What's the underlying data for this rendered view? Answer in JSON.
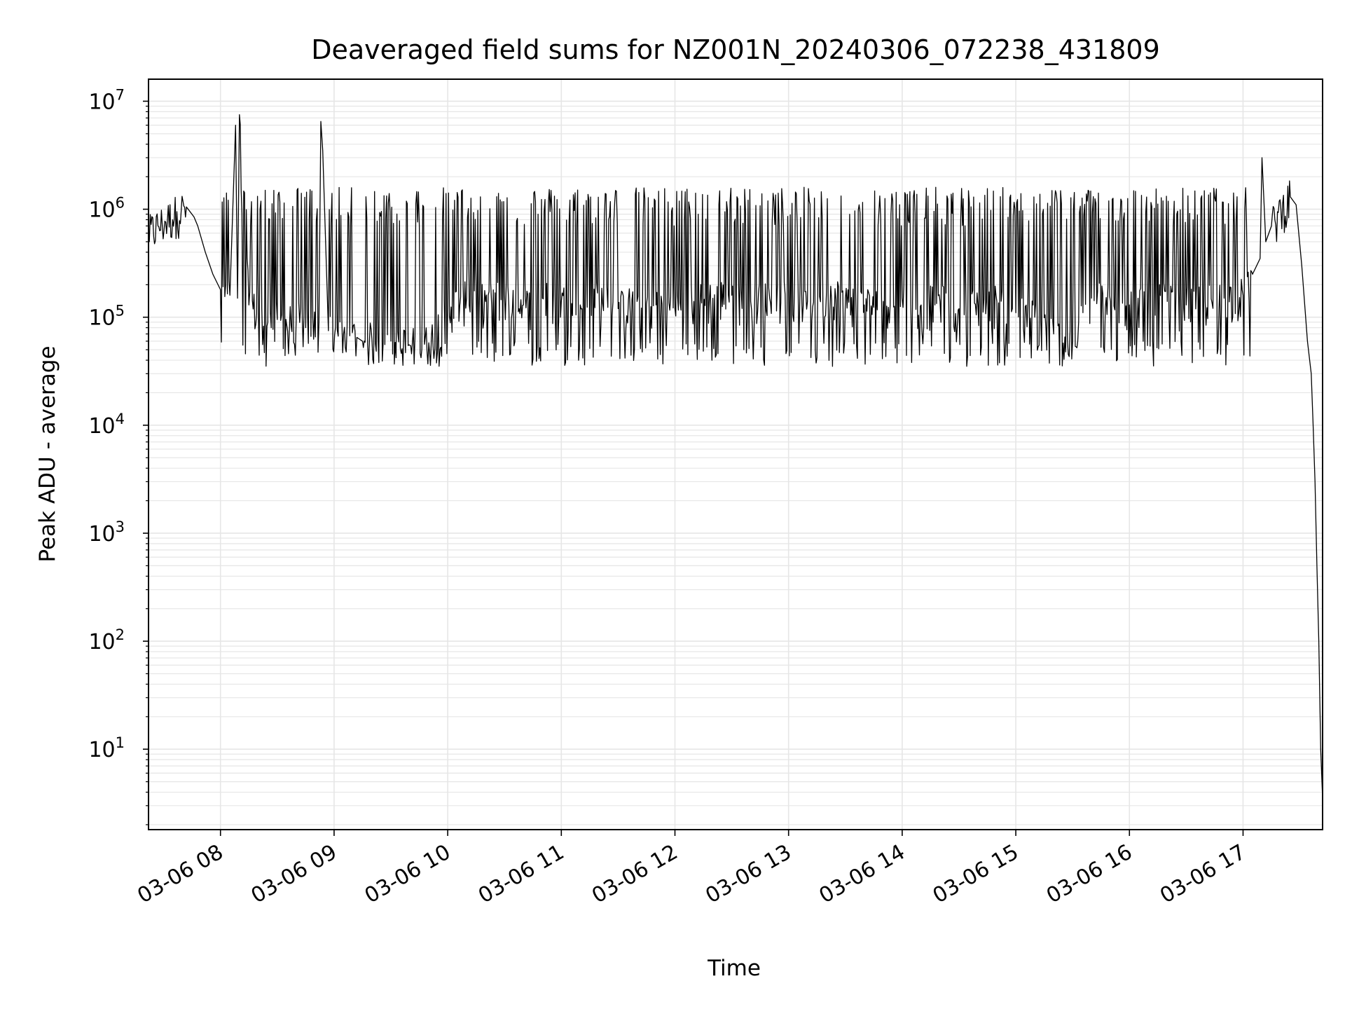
{
  "chart_data": {
    "type": "line",
    "title": "Deaveraged field sums for NZ001N_20240306_072238_431809",
    "xlabel": "Time",
    "ylabel": "Peak ADU - average",
    "yscale": "log",
    "grid": true,
    "legend": "none",
    "line_color": "#000000",
    "grid_color": "#e6e6e6",
    "xlim": [
      "2024-03-06 07:22",
      "2024-03-06 17:42"
    ],
    "ylim": [
      1.8,
      16000000
    ],
    "x_ticks": [
      {
        "value": "2024-03-06 08:00",
        "label": "03-06 08"
      },
      {
        "value": "2024-03-06 09:00",
        "label": "03-06 09"
      },
      {
        "value": "2024-03-06 10:00",
        "label": "03-06 10"
      },
      {
        "value": "2024-03-06 11:00",
        "label": "03-06 11"
      },
      {
        "value": "2024-03-06 12:00",
        "label": "03-06 12"
      },
      {
        "value": "2024-03-06 13:00",
        "label": "03-06 13"
      },
      {
        "value": "2024-03-06 14:00",
        "label": "03-06 14"
      },
      {
        "value": "2024-03-06 15:00",
        "label": "03-06 15"
      },
      {
        "value": "2024-03-06 16:00",
        "label": "03-06 16"
      },
      {
        "value": "2024-03-06 17:00",
        "label": "03-06 17"
      }
    ],
    "y_ticks": [
      {
        "value": 10,
        "base": "10",
        "exp": "1"
      },
      {
        "value": 100,
        "base": "10",
        "exp": "2"
      },
      {
        "value": 1000,
        "base": "10",
        "exp": "3"
      },
      {
        "value": 10000,
        "base": "10",
        "exp": "4"
      },
      {
        "value": 100000,
        "base": "10",
        "exp": "5"
      },
      {
        "value": 1000000,
        "base": "10",
        "exp": "6"
      },
      {
        "value": 10000000,
        "base": "10",
        "exp": "7"
      }
    ],
    "series": [
      {
        "x": [
          "2024-03-06 07:22",
          "2024-03-06 07:27",
          "2024-03-06 07:32",
          "2024-03-06 07:37",
          "2024-03-06 07:42",
          "2024-03-06 07:46",
          "2024-03-06 07:48",
          "2024-03-06 07:52",
          "2024-03-06 07:56",
          "2024-03-06 08:00",
          "2024-03-06 08:05",
          "2024-03-06 08:08",
          "2024-03-06 08:09",
          "2024-03-06 08:10",
          "2024-03-06 08:15",
          "2024-03-06 08:20",
          "2024-03-06 08:25",
          "2024-03-06 08:30",
          "2024-03-06 08:35",
          "2024-03-06 08:40",
          "2024-03-06 08:45",
          "2024-03-06 08:52",
          "2024-03-06 08:53",
          "2024-03-06 08:54",
          "2024-03-06 08:57",
          "2024-03-06 09:05",
          "2024-03-06 09:12",
          "2024-03-06 09:15",
          "2024-03-06 09:20",
          "2024-03-06 09:30",
          "2024-03-06 09:40",
          "2024-03-06 09:50",
          "2024-03-06 10:00",
          "2024-03-06 10:10",
          "2024-03-06 10:20",
          "2024-03-06 10:30",
          "2024-03-06 10:40",
          "2024-03-06 10:50",
          "2024-03-06 11:00",
          "2024-03-06 11:10",
          "2024-03-06 11:20",
          "2024-03-06 11:30",
          "2024-03-06 11:40",
          "2024-03-06 11:50",
          "2024-03-06 12:00",
          "2024-03-06 12:10",
          "2024-03-06 12:20",
          "2024-03-06 12:30",
          "2024-03-06 12:40",
          "2024-03-06 12:50",
          "2024-03-06 13:00",
          "2024-03-06 13:10",
          "2024-03-06 13:20",
          "2024-03-06 13:30",
          "2024-03-06 13:40",
          "2024-03-06 13:50",
          "2024-03-06 14:00",
          "2024-03-06 14:10",
          "2024-03-06 14:20",
          "2024-03-06 14:30",
          "2024-03-06 14:40",
          "2024-03-06 14:50",
          "2024-03-06 15:00",
          "2024-03-06 15:10",
          "2024-03-06 15:20",
          "2024-03-06 15:30",
          "2024-03-06 15:40",
          "2024-03-06 15:50",
          "2024-03-06 16:00",
          "2024-03-06 16:10",
          "2024-03-06 16:20",
          "2024-03-06 16:30",
          "2024-03-06 16:40",
          "2024-03-06 16:50",
          "2024-03-06 17:00",
          "2024-03-06 17:05",
          "2024-03-06 17:09",
          "2024-03-06 17:10",
          "2024-03-06 17:12",
          "2024-03-06 17:15",
          "2024-03-06 17:20",
          "2024-03-06 17:25",
          "2024-03-06 17:28",
          "2024-03-06 17:31",
          "2024-03-06 17:34",
          "2024-03-06 17:36",
          "2024-03-06 17:37",
          "2024-03-06 17:38",
          "2024-03-06 17:39",
          "2024-03-06 17:40",
          "2024-03-06 17:41",
          "2024-03-06 17:42"
        ],
        "y": [
          600000,
          700000,
          800000,
          950000,
          1050000,
          850000,
          700000,
          400000,
          250000,
          180000,
          160000,
          6000000,
          150000,
          7500000,
          130000,
          110000,
          90000,
          95000,
          85000,
          100000,
          80000,
          90000,
          6500000,
          3500000,
          75000,
          70000,
          65000,
          60000,
          62000,
          60000,
          55000,
          58000,
          120000,
          150000,
          140000,
          160000,
          130000,
          150000,
          140000,
          130000,
          150000,
          120000,
          140000,
          130000,
          120000,
          140000,
          150000,
          160000,
          140000,
          150000,
          160000,
          140000,
          170000,
          150000,
          130000,
          140000,
          150000,
          130000,
          140000,
          120000,
          130000,
          140000,
          110000,
          100000,
          70000,
          60000,
          150000,
          140000,
          130000,
          150000,
          140000,
          130000,
          140000,
          150000,
          160000,
          250000,
          350000,
          3000000,
          500000,
          700000,
          1000000,
          1300000,
          1100000,
          300000,
          60000,
          30000,
          10000,
          3000,
          500,
          100,
          10,
          3.5
        ]
      }
    ]
  }
}
